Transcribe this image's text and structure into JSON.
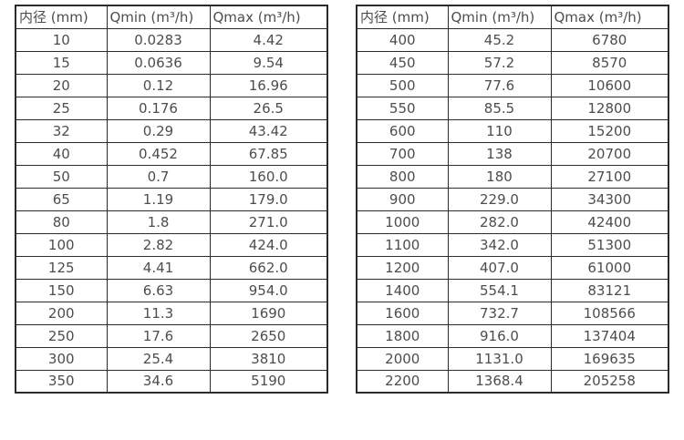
{
  "page": {
    "background_color": "#ffffff",
    "text_color": "#4d4d4d",
    "border_color": "#2b2b2b"
  },
  "tables": [
    {
      "name": "small-diameter-flow-rates",
      "headers": [
        "内径 (mm)",
        "Qmin (m³/h)",
        "Qmax (m³/h)"
      ],
      "rows": [
        [
          "10",
          "0.0283",
          "4.42"
        ],
        [
          "15",
          "0.0636",
          "9.54"
        ],
        [
          "20",
          "0.12",
          "16.96"
        ],
        [
          "25",
          "0.176",
          "26.5"
        ],
        [
          "32",
          "0.29",
          "43.42"
        ],
        [
          "40",
          "0.452",
          "67.85"
        ],
        [
          "50",
          "0.7",
          "160.0"
        ],
        [
          "65",
          "1.19",
          "179.0"
        ],
        [
          "80",
          "1.8",
          "271.0"
        ],
        [
          "100",
          "2.82",
          "424.0"
        ],
        [
          "125",
          "4.41",
          "662.0"
        ],
        [
          "150",
          "6.63",
          "954.0"
        ],
        [
          "200",
          "11.3",
          "1690"
        ],
        [
          "250",
          "17.6",
          "2650"
        ],
        [
          "300",
          "25.4",
          "3810"
        ],
        [
          "350",
          "34.6",
          "5190"
        ]
      ]
    },
    {
      "name": "large-diameter-flow-rates",
      "headers": [
        "内径 (mm)",
        "Qmin (m³/h)",
        "Qmax (m³/h)"
      ],
      "rows": [
        [
          "400",
          "45.2",
          "6780"
        ],
        [
          "450",
          "57.2",
          "8570"
        ],
        [
          "500",
          "77.6",
          "10600"
        ],
        [
          "550",
          "85.5",
          "12800"
        ],
        [
          "600",
          "110",
          "15200"
        ],
        [
          "700",
          "138",
          "20700"
        ],
        [
          "800",
          "180",
          "27100"
        ],
        [
          "900",
          "229.0",
          "34300"
        ],
        [
          "1000",
          "282.0",
          "42400"
        ],
        [
          "1100",
          "342.0",
          "51300"
        ],
        [
          "1200",
          "407.0",
          "61000"
        ],
        [
          "1400",
          "554.1",
          "83121"
        ],
        [
          "1600",
          "732.7",
          "108566"
        ],
        [
          "1800",
          "916.0",
          "137404"
        ],
        [
          "2000",
          "1131.0",
          "169635"
        ],
        [
          "2200",
          "1368.4",
          "205258"
        ]
      ]
    }
  ]
}
